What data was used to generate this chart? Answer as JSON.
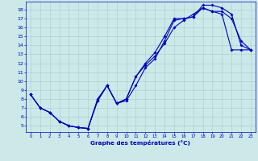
{
  "bg_color": "#cce8e8",
  "line_color": "#0000bb",
  "grid_color": "#aacccc",
  "xlabel": "Graphe des températures (°C)",
  "x_ticks": [
    0,
    1,
    2,
    3,
    4,
    5,
    6,
    7,
    8,
    9,
    10,
    11,
    12,
    13,
    14,
    15,
    16,
    17,
    18,
    19,
    20,
    21,
    22,
    23
  ],
  "y_ticks": [
    5,
    6,
    7,
    8,
    9,
    10,
    11,
    12,
    13,
    14,
    15,
    16,
    17,
    18
  ],
  "ylim": [
    4.3,
    18.9
  ],
  "xlim": [
    -0.5,
    23.5
  ],
  "lines": [
    [
      8.5,
      7.0,
      6.5,
      5.5,
      5.0,
      4.8,
      4.7,
      8.0,
      9.5,
      7.5,
      7.8,
      9.5,
      11.5,
      12.5,
      14.5,
      16.8,
      17.0,
      17.2,
      18.5,
      18.5,
      18.2,
      17.5,
      14.0,
      13.5
    ],
    [
      8.5,
      7.0,
      6.5,
      5.5,
      5.0,
      4.8,
      4.7,
      7.8,
      9.5,
      7.5,
      8.0,
      10.5,
      12.0,
      13.2,
      15.0,
      17.0,
      17.0,
      17.2,
      18.2,
      17.8,
      17.8,
      17.0,
      14.5,
      13.5
    ],
    [
      8.5,
      7.0,
      6.5,
      5.5,
      5.0,
      4.8,
      4.7,
      7.8,
      9.5,
      7.5,
      8.0,
      10.5,
      11.8,
      12.8,
      14.2,
      16.0,
      16.8,
      17.5,
      18.2,
      17.8,
      17.5,
      13.5,
      13.5,
      13.5
    ]
  ]
}
